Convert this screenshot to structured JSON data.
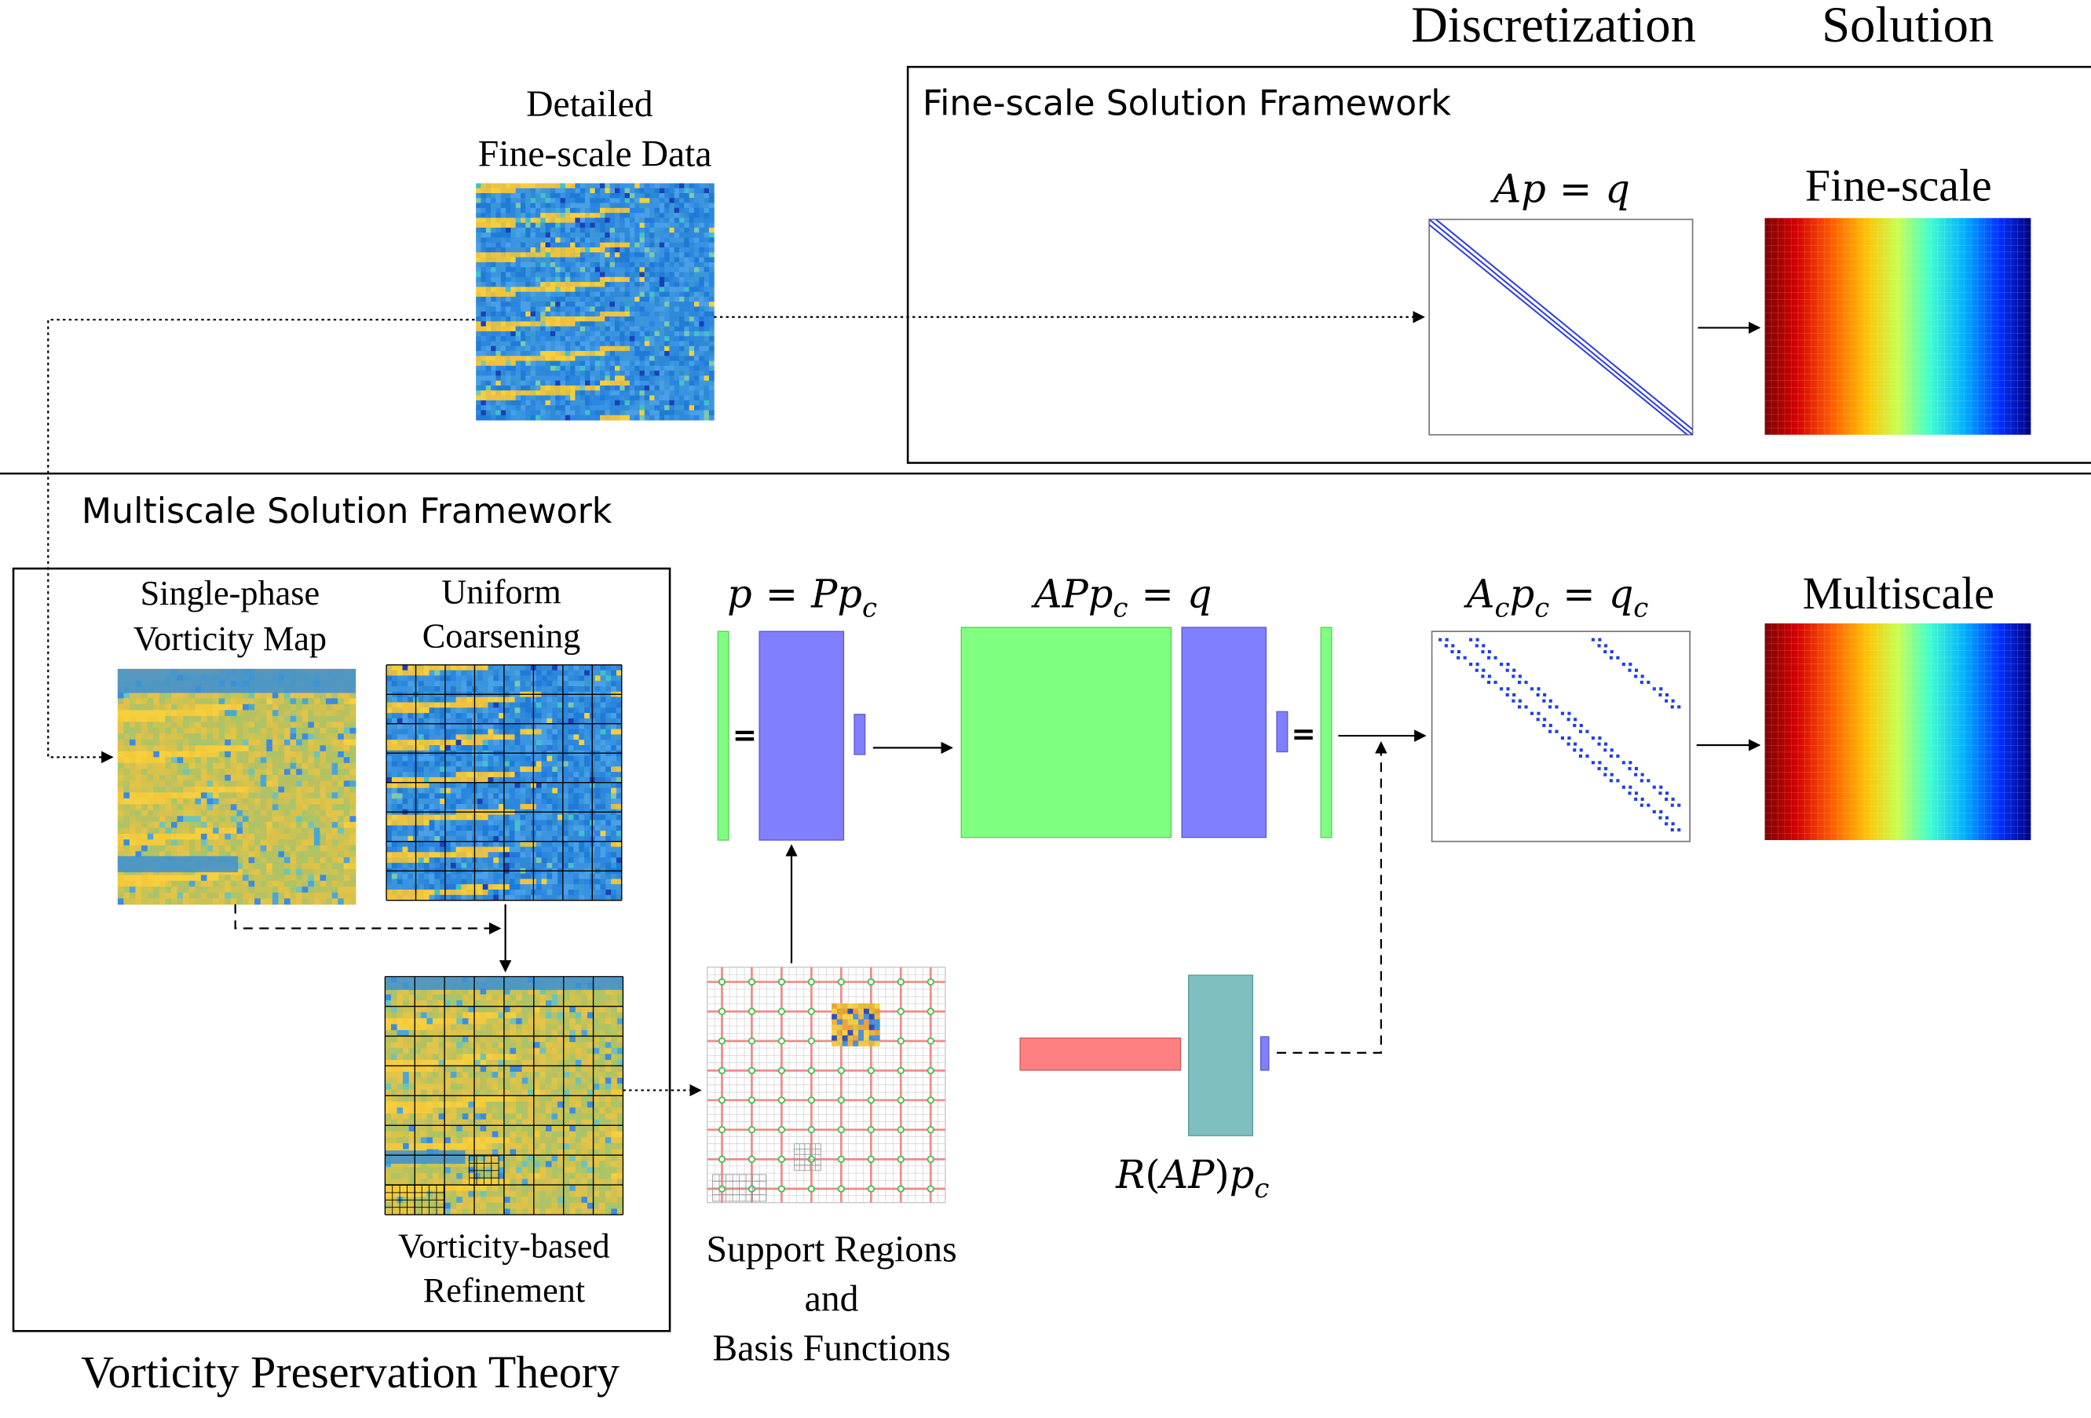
{
  "headers": {
    "discretization": "Discretization",
    "solution": "Solution"
  },
  "fine_scale": {
    "data_title_line1": "Detailed",
    "data_title_line2": "Fine-scale Data",
    "framework_title": "Fine-scale Solution Framework",
    "equation_left": "Ap",
    "equation_eq": "=",
    "equation_right": "q",
    "solution_label": "Fine-scale"
  },
  "multiscale": {
    "framework_title": "Multiscale Solution Framework",
    "vorticity_map_line1": "Single-phase",
    "vorticity_map_line2": "Vorticity Map",
    "coarsening_line1": "Uniform",
    "coarsening_line2": "Coarsening",
    "refinement_line1": "Vorticity-based",
    "refinement_line2": "Refinement",
    "theory_label": "Vorticity Preservation Theory",
    "support_line1": "Support Regions",
    "support_line2": "and",
    "support_line3": "Basis Functions",
    "eq1": {
      "lhs": "p",
      "eq": "=",
      "rhs": "P",
      "rhs2": "p",
      "sub": "c"
    },
    "eq2": {
      "a": "AP",
      "b": "p",
      "sub": "c",
      "eq": "=",
      "rhs": "q"
    },
    "eq3": {
      "a": "A",
      "asub": "c",
      "b": "p",
      "bsub": "c",
      "eq": "=",
      "rhs": "q",
      "rhssub": "c"
    },
    "eq4": {
      "r": "R",
      "lp": "(",
      "ap": "AP",
      "rp": ")",
      "p": "p",
      "sub": "c"
    },
    "equals_symbol": "=",
    "solution_label": "Multiscale"
  },
  "colors": {
    "green": "#80ff80",
    "blue_purple": "#8080ff",
    "teal": "#80bfbf",
    "salmon": "#ff8080",
    "matrix_dots": "#1f3fe0"
  }
}
